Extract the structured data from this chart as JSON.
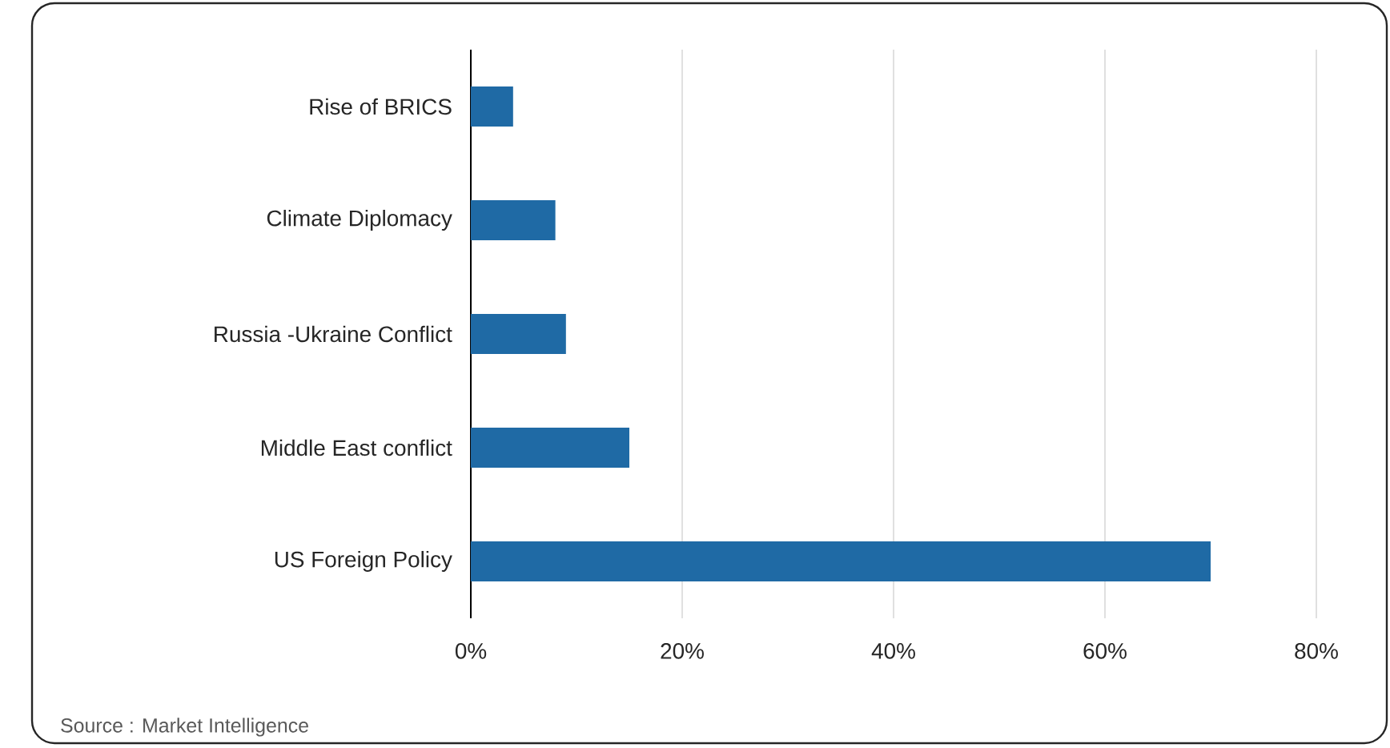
{
  "chart_data": {
    "type": "bar",
    "orientation": "horizontal",
    "categories": [
      "Rise of BRICS",
      "Climate Diplomacy",
      "Russia -Ukraine Conflict",
      "Middle East conflict",
      "US Foreign Policy"
    ],
    "values": [
      4,
      8,
      9,
      15,
      70
    ],
    "color": "#1f6aa5",
    "xlim": [
      0,
      80
    ],
    "xticks": [
      {
        "value": 0,
        "label": "0%"
      },
      {
        "value": 20,
        "label": "20%"
      },
      {
        "value": 40,
        "label": "40%"
      },
      {
        "value": 60,
        "label": "60%"
      },
      {
        "value": 80,
        "label": "80%"
      }
    ],
    "grid": "x",
    "annotations": [
      "Source : Market Intelligence"
    ]
  }
}
